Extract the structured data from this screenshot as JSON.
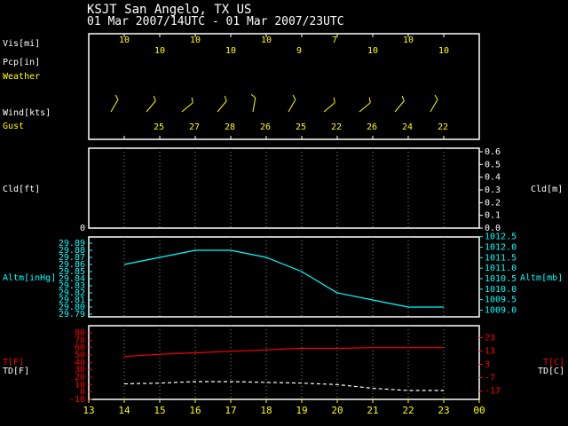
{
  "header": {
    "station": "KSJT  San Angelo, TX US",
    "period": "01 Mar 2007/14UTC - 01 Mar 2007/23UTC"
  },
  "colors": {
    "background": "#000000",
    "frame": "#ffffff",
    "header_text": "#ffffff",
    "label_yellow": "#ffff00",
    "altimeter": "#00ffff",
    "temperature": "#ff0000",
    "dewpoint": "#ffffff"
  },
  "labels": {
    "vis": "Vis[mi]",
    "pcp": "Pcp[in]",
    "weather": "Weather",
    "wind": "Wind[kts]",
    "gust": "Gust",
    "cld_ft": "Cld[ft]",
    "cld_m": "Cld[m]",
    "altm_inhg": "Altm[inHg]",
    "altm_mb": "Altm[mb]",
    "t_f": "T[F]",
    "td_f": "TD[F]",
    "t_c": "T[C]",
    "td_c": "TD[C]"
  },
  "chart_data": [
    {
      "type": "table",
      "panel": "surface observations",
      "hours": [
        14,
        15,
        16,
        17,
        18,
        19,
        20,
        21,
        22,
        23
      ],
      "visibility_mi": [
        "10",
        "10",
        "10",
        "10",
        "10",
        "9",
        "7",
        "10",
        "10",
        "10"
      ],
      "wind": {
        "direction_deg": [
          210,
          220,
          230,
          220,
          190,
          210,
          230,
          230,
          220,
          210
        ],
        "speed_kts": [
          null,
          15,
          null,
          null,
          null,
          null,
          null,
          null,
          null,
          null
        ]
      },
      "gust_kts": [
        null,
        "25",
        "27",
        "28",
        "26",
        "25",
        "22",
        "26",
        "24",
        "22"
      ]
    },
    {
      "type": "line",
      "panel": "cloud",
      "ylabel": "Cld[ft]",
      "y2label": "Cld[m]",
      "yticks": [
        "0"
      ],
      "y2ticks": [
        "0.0",
        "0.1",
        "0.2",
        "0.3",
        "0.4",
        "0.5",
        "0.6"
      ],
      "ylim": [
        0,
        0.6
      ],
      "grid": true,
      "series": []
    },
    {
      "type": "line",
      "panel": "altimeter",
      "ylabel": "Altm[inHg]",
      "y2label": "Altm[mb]",
      "yticks": [
        "29.79",
        "29.80",
        "29.81",
        "29.82",
        "29.83",
        "29.84",
        "29.85",
        "29.86",
        "29.87",
        "29.88",
        "29.89"
      ],
      "y2ticks": [
        "1009.0",
        "1009.5",
        "1010.0",
        "1010.5",
        "1011.0",
        "1011.5",
        "1012.0",
        "1012.5"
      ],
      "ylim": [
        29.79,
        29.89
      ],
      "grid": true,
      "series": [
        {
          "x": [
            14,
            15,
            16,
            17,
            18,
            19,
            20,
            21,
            22,
            23
          ],
          "values": [
            29.86,
            29.87,
            29.88,
            29.88,
            29.87,
            29.85,
            29.82,
            29.81,
            29.8,
            29.8
          ]
        }
      ]
    },
    {
      "type": "line",
      "panel": "temperature",
      "ylabel": "T[F] / TD[F]",
      "y2label": "T[C] / TD[C]",
      "yticks": [
        "-10",
        "0",
        "10",
        "20",
        "30",
        "40",
        "50",
        "60",
        "70",
        "80"
      ],
      "y2ticks": [
        "-17",
        "-7",
        "3",
        "13",
        "23"
      ],
      "ylim": [
        -10,
        80
      ],
      "grid": true,
      "xticks": [
        "13",
        "14",
        "15",
        "16",
        "17",
        "18",
        "19",
        "20",
        "21",
        "22",
        "23",
        "00"
      ],
      "xlim": [
        13,
        24
      ],
      "series": [
        {
          "key": "temperature",
          "x": [
            14,
            15,
            16,
            17,
            18,
            19,
            20,
            21,
            22,
            23
          ],
          "values": [
            48,
            51,
            53,
            55,
            57,
            59,
            59,
            60,
            60,
            60
          ]
        },
        {
          "key": "dewpoint",
          "x": [
            14,
            15,
            16,
            17,
            18,
            19,
            20,
            21,
            22,
            23
          ],
          "values": [
            11,
            12,
            14,
            14,
            13,
            12,
            10,
            5,
            2,
            2
          ]
        }
      ]
    }
  ]
}
